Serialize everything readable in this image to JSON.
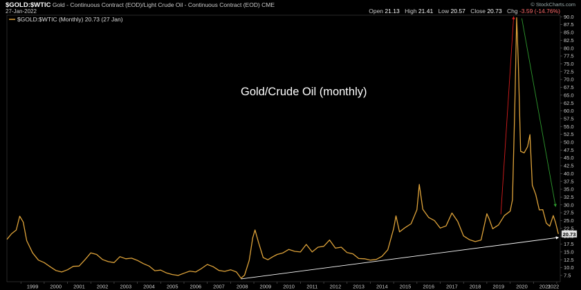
{
  "header": {
    "symbol": "$GOLD:$WTIC",
    "description": "Gold - Continuous Contract (EOD)/Light Crude Oil - Continuous Contract (EOD) CME",
    "date": "27-Jan-2022",
    "watermark": "© StockCharts.com",
    "ohlc": {
      "open_label": "Open",
      "open": "21.13",
      "high_label": "High",
      "high": "21.41",
      "low_label": "Low",
      "low": "20.57",
      "close_label": "Close",
      "close": "20.73",
      "chg_label": "Chg",
      "chg": "-3.59 (-14.76%)"
    }
  },
  "legend_label": "$GOLD:$WTIC (Monthly) 20.73 (27 Jan)",
  "last_value_tag": "20.73",
  "colors": {
    "background": "#000000",
    "series": "#e0a43a",
    "support_line": "#ffffff",
    "up_arrow": "#d61d1d",
    "down_arrow": "#2e9a2e",
    "value_tag_bg": "#e8e8e8"
  },
  "chart_data": {
    "type": "line",
    "title": "Gold/Crude Oil (monthly)",
    "x_tick_labels": [
      "1999",
      "2000",
      "2001",
      "2002",
      "2003",
      "2004",
      "2005",
      "2006",
      "2007",
      "2008",
      "2009",
      "2010",
      "2011",
      "2012",
      "2013",
      "2014",
      "2015",
      "2016",
      "2017",
      "2018",
      "2019",
      "2020",
      "2021",
      "2022"
    ],
    "y_tick_labels": [
      "7.5",
      "10.0",
      "12.5",
      "15.0",
      "17.5",
      "20.0",
      "22.5",
      "25.0",
      "27.5",
      "30.0",
      "32.5",
      "35.0",
      "37.5",
      "40.0",
      "42.5",
      "45.0",
      "47.5",
      "50.0",
      "52.5",
      "55.0",
      "57.5",
      "60.0",
      "62.5",
      "65.0",
      "67.5",
      "70.0",
      "72.5",
      "75.0",
      "77.5",
      "80.0",
      "82.5",
      "85.0",
      "87.5",
      "90.0"
    ],
    "ylim": [
      5.5,
      90.5
    ],
    "xlim": [
      1998.4,
      2022.15
    ],
    "axis_side": "right",
    "grid": false,
    "series": [
      {
        "name": "$GOLD:$WTIC (Monthly)",
        "points": [
          [
            1998.4,
            19.0
          ],
          [
            1998.6,
            20.8
          ],
          [
            1998.8,
            22.0
          ],
          [
            1998.95,
            26.4
          ],
          [
            1999.1,
            24.5
          ],
          [
            1999.25,
            18.6
          ],
          [
            1999.5,
            14.7
          ],
          [
            1999.75,
            12.4
          ],
          [
            2000.0,
            11.6
          ],
          [
            2000.25,
            10.3
          ],
          [
            2000.5,
            9.1
          ],
          [
            2000.75,
            8.6
          ],
          [
            2001.0,
            9.3
          ],
          [
            2001.25,
            10.4
          ],
          [
            2001.5,
            10.5
          ],
          [
            2001.75,
            12.5
          ],
          [
            2002.0,
            14.7
          ],
          [
            2002.25,
            14.2
          ],
          [
            2002.5,
            12.6
          ],
          [
            2002.75,
            11.9
          ],
          [
            2003.0,
            11.6
          ],
          [
            2003.25,
            13.5
          ],
          [
            2003.5,
            12.8
          ],
          [
            2003.75,
            13.0
          ],
          [
            2004.0,
            12.3
          ],
          [
            2004.25,
            11.3
          ],
          [
            2004.5,
            10.5
          ],
          [
            2004.75,
            9.0
          ],
          [
            2005.0,
            9.2
          ],
          [
            2005.25,
            8.3
          ],
          [
            2005.5,
            7.8
          ],
          [
            2005.75,
            7.5
          ],
          [
            2006.0,
            8.2
          ],
          [
            2006.25,
            8.9
          ],
          [
            2006.5,
            8.6
          ],
          [
            2006.75,
            9.7
          ],
          [
            2007.0,
            11.0
          ],
          [
            2007.25,
            10.3
          ],
          [
            2007.5,
            9.1
          ],
          [
            2007.75,
            8.8
          ],
          [
            2008.0,
            9.3
          ],
          [
            2008.25,
            8.6
          ],
          [
            2008.45,
            6.6
          ],
          [
            2008.6,
            7.6
          ],
          [
            2008.8,
            12.3
          ],
          [
            2008.95,
            19.5
          ],
          [
            2009.05,
            22.0
          ],
          [
            2009.2,
            18.0
          ],
          [
            2009.4,
            13.2
          ],
          [
            2009.6,
            12.5
          ],
          [
            2009.8,
            13.4
          ],
          [
            2010.0,
            14.2
          ],
          [
            2010.25,
            14.7
          ],
          [
            2010.5,
            15.8
          ],
          [
            2010.75,
            15.2
          ],
          [
            2011.0,
            15.0
          ],
          [
            2011.25,
            17.4
          ],
          [
            2011.5,
            15.0
          ],
          [
            2011.75,
            16.5
          ],
          [
            2012.0,
            16.8
          ],
          [
            2012.25,
            18.8
          ],
          [
            2012.5,
            16.2
          ],
          [
            2012.75,
            16.5
          ],
          [
            2013.0,
            14.8
          ],
          [
            2013.25,
            14.4
          ],
          [
            2013.5,
            12.9
          ],
          [
            2013.75,
            12.8
          ],
          [
            2014.0,
            12.4
          ],
          [
            2014.25,
            12.6
          ],
          [
            2014.5,
            13.6
          ],
          [
            2014.75,
            15.7
          ],
          [
            2015.0,
            22.5
          ],
          [
            2015.1,
            26.5
          ],
          [
            2015.25,
            21.4
          ],
          [
            2015.5,
            22.8
          ],
          [
            2015.75,
            24.0
          ],
          [
            2016.0,
            28.5
          ],
          [
            2016.1,
            36.5
          ],
          [
            2016.25,
            28.6
          ],
          [
            2016.5,
            26.0
          ],
          [
            2016.75,
            25.0
          ],
          [
            2017.0,
            22.6
          ],
          [
            2017.25,
            23.3
          ],
          [
            2017.5,
            27.4
          ],
          [
            2017.75,
            24.7
          ],
          [
            2018.0,
            20.1
          ],
          [
            2018.25,
            18.9
          ],
          [
            2018.5,
            18.3
          ],
          [
            2018.75,
            18.8
          ],
          [
            2019.0,
            27.2
          ],
          [
            2019.1,
            25.5
          ],
          [
            2019.25,
            22.4
          ],
          [
            2019.5,
            23.6
          ],
          [
            2019.75,
            26.6
          ],
          [
            2020.0,
            28.0
          ],
          [
            2020.1,
            31.6
          ],
          [
            2020.2,
            61.4
          ],
          [
            2020.28,
            89.7
          ],
          [
            2020.35,
            75.2
          ],
          [
            2020.45,
            47.1
          ],
          [
            2020.6,
            46.6
          ],
          [
            2020.75,
            48.6
          ],
          [
            2020.85,
            52.4
          ],
          [
            2020.95,
            36.3
          ],
          [
            2021.1,
            33.3
          ],
          [
            2021.25,
            28.4
          ],
          [
            2021.4,
            28.5
          ],
          [
            2021.55,
            24.2
          ],
          [
            2021.7,
            23.2
          ],
          [
            2021.85,
            26.6
          ],
          [
            2021.95,
            24.3
          ],
          [
            2022.07,
            20.73
          ]
        ]
      }
    ],
    "annotations": [
      {
        "type": "support_line",
        "from": [
          2008.45,
          6.4
        ],
        "to": [
          2022.07,
          19.6
        ]
      },
      {
        "type": "arrow_up",
        "from": [
          2019.6,
          27.0
        ],
        "to": [
          2020.15,
          90.0
        ]
      },
      {
        "type": "arrow_down",
        "from": [
          2020.5,
          89.5
        ],
        "to": [
          2021.95,
          29.5
        ]
      }
    ]
  }
}
